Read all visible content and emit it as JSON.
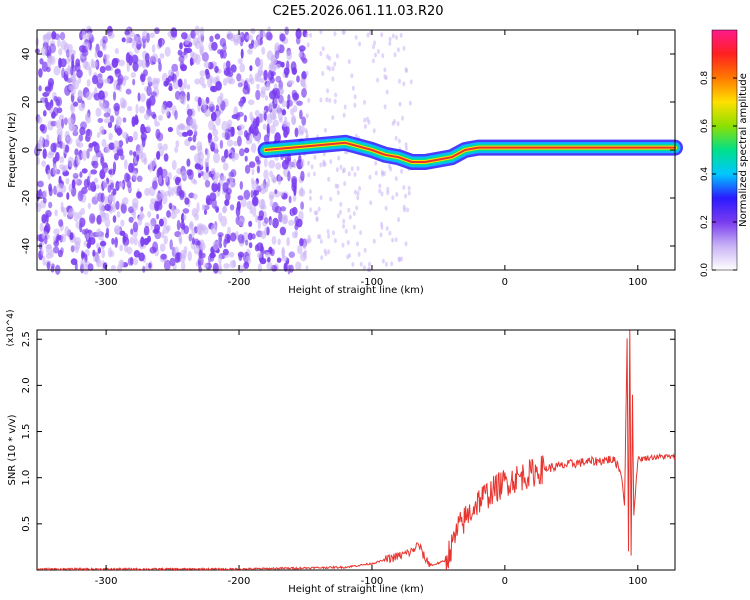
{
  "title": "C2E5.2026.061.11.03.R20",
  "colors": {
    "snr_line": "#e8342e",
    "ridge_core": "#e8342e",
    "scatter": "#7a3cf0",
    "axes": "#000000"
  },
  "chart_data": [
    {
      "type": "heatmap",
      "xlabel": "Height of straight line (km)",
      "ylabel": "Frequency (Hz)",
      "xlim": [
        -352,
        128
      ],
      "ylim": [
        -50,
        50
      ],
      "x_ticks": [
        -300,
        -200,
        -100,
        0,
        100
      ],
      "y_ticks": [
        -40,
        -20,
        0,
        20,
        40
      ],
      "colorbar": {
        "label": "Normalized spectral amplitude",
        "range": [
          0.0,
          1.0
        ],
        "ticks": [
          0.0,
          0.2,
          0.4,
          0.6,
          0.8
        ],
        "colormap": [
          "#ffffff",
          "#c9b3f5",
          "#7a3cf0",
          "#2a1aff",
          "#00c8ff",
          "#00e08a",
          "#8de000",
          "#ffe000",
          "#ff7a00",
          "#ff2020",
          "#ff1a8c"
        ]
      },
      "ridge": {
        "x": [
          -180,
          -160,
          -140,
          -120,
          -100,
          -90,
          -80,
          -70,
          -60,
          -50,
          -40,
          -30,
          -20,
          0,
          20,
          50,
          80,
          90,
          100,
          128
        ],
        "frequency": [
          0,
          1,
          2,
          3,
          0,
          -2,
          -3,
          -5,
          -5,
          -4,
          -3,
          0,
          1,
          1,
          1,
          1,
          1,
          1,
          1,
          1
        ]
      }
    },
    {
      "type": "line",
      "xlabel": "Height of straight line (km)",
      "ylabel": "SNR (10 * v/v)",
      "y_multiplier": "(x10^4)",
      "xlim": [
        -352,
        128
      ],
      "ylim": [
        0,
        2.6
      ],
      "x_ticks": [
        -300,
        -200,
        -100,
        0,
        100
      ],
      "y_ticks": [
        0.5,
        1.0,
        1.5,
        2.0,
        2.5
      ],
      "series": [
        {
          "x": [
            -352,
            -200,
            -120,
            -100,
            -80,
            -70,
            -65,
            -60,
            -55,
            -45,
            -40,
            -35,
            -30,
            -25,
            -20,
            -10,
            0,
            10,
            20,
            30,
            40,
            50,
            60,
            70,
            80,
            85,
            88,
            90,
            92,
            93,
            94,
            95,
            96,
            97,
            100,
            110,
            120,
            128
          ],
          "y": [
            0.01,
            0.01,
            0.03,
            0.07,
            0.15,
            0.2,
            0.28,
            0.12,
            0.05,
            0.1,
            0.25,
            0.45,
            0.55,
            0.65,
            0.75,
            0.85,
            0.95,
            1.0,
            1.05,
            1.1,
            1.12,
            1.15,
            1.17,
            1.18,
            1.2,
            1.15,
            1.0,
            0.7,
            2.5,
            0.2,
            2.6,
            0.15,
            1.9,
            0.6,
            1.2,
            1.22,
            1.23,
            1.22
          ]
        }
      ]
    }
  ]
}
